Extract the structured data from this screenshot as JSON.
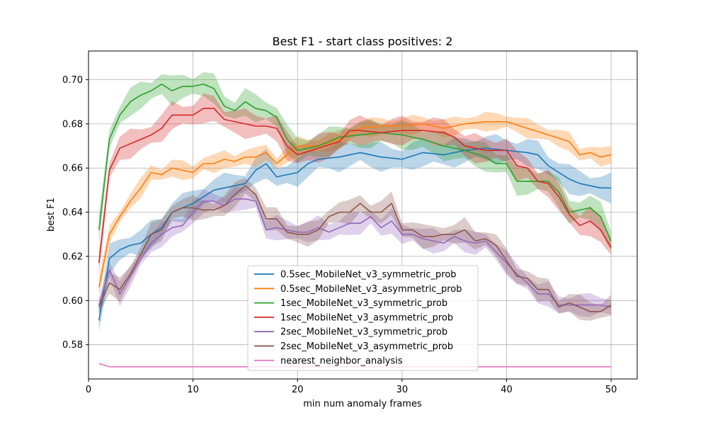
{
  "chart_data": {
    "type": "line",
    "title": "Best F1 - start class positives: 2",
    "xlabel": "min num anomaly frames",
    "ylabel": "best F1",
    "xlim": [
      0,
      52.5
    ],
    "ylim": [
      0.5645,
      0.713
    ],
    "xticks": [
      0,
      10,
      20,
      30,
      40,
      50
    ],
    "yticks": [
      0.58,
      0.6,
      0.62,
      0.64,
      0.66,
      0.68,
      0.7
    ],
    "ytick_labels": [
      "0.58",
      "0.60",
      "0.62",
      "0.64",
      "0.66",
      "0.68",
      "0.70"
    ],
    "grid": true,
    "legend_position": "lower-center",
    "x_keys": [
      1,
      2,
      3,
      4,
      5,
      6,
      7,
      8,
      9,
      10,
      11,
      12,
      13,
      14,
      15,
      16,
      17,
      18,
      19,
      20,
      21,
      22,
      23,
      24,
      25,
      26,
      27,
      28,
      29,
      30,
      31,
      32,
      33,
      34,
      35,
      36,
      37,
      38,
      39,
      40,
      41,
      42,
      43,
      44,
      45,
      46,
      47,
      48,
      49,
      50
    ],
    "series": [
      {
        "name": "0.5sec_MobileNet_v3_symmetric_prob",
        "color": "#1f77b4",
        "band": 0.006,
        "keys": [
          1,
          2,
          3,
          4,
          5,
          6,
          7,
          8,
          9,
          10,
          12,
          14,
          15,
          16,
          17,
          18,
          19,
          20,
          21,
          22,
          24,
          26,
          28,
          30,
          32,
          34,
          36,
          38,
          40,
          42,
          43,
          44,
          45,
          46,
          47,
          48,
          49,
          50
        ],
        "values": [
          0.591,
          0.619,
          0.623,
          0.625,
          0.626,
          0.63,
          0.633,
          0.64,
          0.642,
          0.644,
          0.65,
          0.652,
          0.653,
          0.659,
          0.662,
          0.656,
          0.657,
          0.658,
          0.662,
          0.664,
          0.665,
          0.667,
          0.665,
          0.664,
          0.667,
          0.666,
          0.668,
          0.669,
          0.668,
          0.667,
          0.666,
          0.661,
          0.658,
          0.655,
          0.653,
          0.652,
          0.651,
          0.651
        ]
      },
      {
        "name": "0.5sec_MobileNet_v3_asymmetric_prob",
        "color": "#ff7f0e",
        "band": 0.004,
        "keys": [
          1,
          2,
          3,
          4,
          5,
          6,
          7,
          8,
          9,
          10,
          11,
          12,
          13,
          14,
          15,
          16,
          17,
          18,
          19,
          20,
          22,
          24,
          26,
          28,
          30,
          32,
          34,
          36,
          38,
          40,
          42,
          44,
          46,
          47,
          48,
          49,
          50
        ],
        "values": [
          0.606,
          0.63,
          0.638,
          0.645,
          0.651,
          0.658,
          0.657,
          0.66,
          0.659,
          0.658,
          0.662,
          0.662,
          0.664,
          0.663,
          0.665,
          0.665,
          0.667,
          0.662,
          0.666,
          0.67,
          0.67,
          0.673,
          0.678,
          0.679,
          0.679,
          0.68,
          0.678,
          0.68,
          0.681,
          0.681,
          0.678,
          0.675,
          0.672,
          0.666,
          0.667,
          0.665,
          0.666
        ]
      },
      {
        "name": "1sec_MobileNet_v3_symmetric_prob",
        "color": "#2ca02c",
        "band": 0.006,
        "keys": [
          1,
          2,
          3,
          4,
          5,
          6,
          7,
          8,
          9,
          10,
          11,
          12,
          13,
          14,
          15,
          16,
          17,
          18,
          19,
          20,
          22,
          24,
          26,
          28,
          30,
          32,
          34,
          36,
          38,
          39,
          40,
          41,
          42,
          43,
          44,
          45,
          46,
          47,
          48,
          49,
          50
        ],
        "values": [
          0.632,
          0.673,
          0.684,
          0.69,
          0.693,
          0.695,
          0.698,
          0.695,
          0.697,
          0.697,
          0.698,
          0.696,
          0.688,
          0.686,
          0.69,
          0.687,
          0.686,
          0.683,
          0.673,
          0.668,
          0.67,
          0.674,
          0.675,
          0.676,
          0.675,
          0.673,
          0.67,
          0.668,
          0.665,
          0.662,
          0.662,
          0.654,
          0.654,
          0.654,
          0.654,
          0.649,
          0.64,
          0.641,
          0.642,
          0.638,
          0.627
        ]
      },
      {
        "name": "1sec_MobileNet_v3_asymmetric_prob",
        "color": "#d62728",
        "band": 0.006,
        "keys": [
          1,
          2,
          3,
          4,
          5,
          6,
          7,
          8,
          9,
          10,
          11,
          12,
          13,
          14,
          15,
          16,
          17,
          18,
          19,
          20,
          22,
          24,
          25,
          26,
          28,
          30,
          32,
          34,
          35,
          36,
          38,
          40,
          41,
          42,
          43,
          44,
          45,
          46,
          47,
          48,
          49,
          50
        ],
        "values": [
          0.617,
          0.659,
          0.669,
          0.671,
          0.673,
          0.675,
          0.678,
          0.684,
          0.684,
          0.684,
          0.687,
          0.687,
          0.682,
          0.681,
          0.68,
          0.679,
          0.679,
          0.678,
          0.67,
          0.666,
          0.669,
          0.672,
          0.677,
          0.677,
          0.676,
          0.677,
          0.677,
          0.676,
          0.674,
          0.67,
          0.668,
          0.668,
          0.661,
          0.66,
          0.654,
          0.653,
          0.647,
          0.639,
          0.634,
          0.636,
          0.632,
          0.624
        ]
      },
      {
        "name": "2sec_MobileNet_v3_symmetric_prob",
        "color": "#9467bd",
        "band": 0.005,
        "keys": [
          1,
          2,
          3,
          4,
          5,
          6,
          7,
          8,
          9,
          10,
          11,
          12,
          13,
          14,
          15,
          16,
          17,
          18,
          19,
          20,
          21,
          22,
          23,
          24,
          25,
          26,
          27,
          28,
          29,
          30,
          31,
          32,
          33,
          34,
          35,
          36,
          37,
          38,
          39,
          40,
          41,
          42,
          43,
          44,
          45,
          46,
          47,
          48,
          49,
          50
        ],
        "values": [
          0.598,
          0.614,
          0.603,
          0.611,
          0.619,
          0.626,
          0.63,
          0.633,
          0.634,
          0.64,
          0.645,
          0.645,
          0.643,
          0.646,
          0.646,
          0.645,
          0.632,
          0.633,
          0.632,
          0.631,
          0.631,
          0.633,
          0.631,
          0.633,
          0.635,
          0.635,
          0.638,
          0.633,
          0.636,
          0.63,
          0.63,
          0.628,
          0.627,
          0.626,
          0.629,
          0.627,
          0.626,
          0.627,
          0.622,
          0.617,
          0.612,
          0.608,
          0.603,
          0.603,
          0.598,
          0.598,
          0.598,
          0.598,
          0.598,
          0.597
        ]
      },
      {
        "name": "2sec_MobileNet_v3_asymmetric_prob",
        "color": "#8c564b",
        "band": 0.005,
        "keys": [
          1,
          2,
          3,
          4,
          5,
          6,
          7,
          8,
          9,
          10,
          11,
          12,
          13,
          14,
          15,
          16,
          17,
          18,
          19,
          20,
          21,
          22,
          23,
          24,
          25,
          26,
          27,
          28,
          29,
          30,
          31,
          32,
          33,
          34,
          35,
          36,
          37,
          38,
          39,
          40,
          41,
          42,
          43,
          44,
          45,
          46,
          47,
          48,
          49,
          50
        ],
        "values": [
          0.597,
          0.608,
          0.605,
          0.612,
          0.621,
          0.63,
          0.632,
          0.64,
          0.642,
          0.642,
          0.641,
          0.641,
          0.643,
          0.648,
          0.652,
          0.648,
          0.637,
          0.637,
          0.631,
          0.63,
          0.63,
          0.632,
          0.638,
          0.64,
          0.64,
          0.644,
          0.64,
          0.64,
          0.644,
          0.632,
          0.632,
          0.629,
          0.629,
          0.63,
          0.63,
          0.632,
          0.627,
          0.628,
          0.625,
          0.618,
          0.611,
          0.61,
          0.605,
          0.605,
          0.597,
          0.599,
          0.597,
          0.595,
          0.595,
          0.598
        ]
      },
      {
        "name": "nearest_neighbor_analysis",
        "color": "#e377c2",
        "band": 0,
        "keys": [
          1,
          2,
          50
        ],
        "values": [
          0.5715,
          0.57,
          0.57
        ]
      }
    ]
  }
}
